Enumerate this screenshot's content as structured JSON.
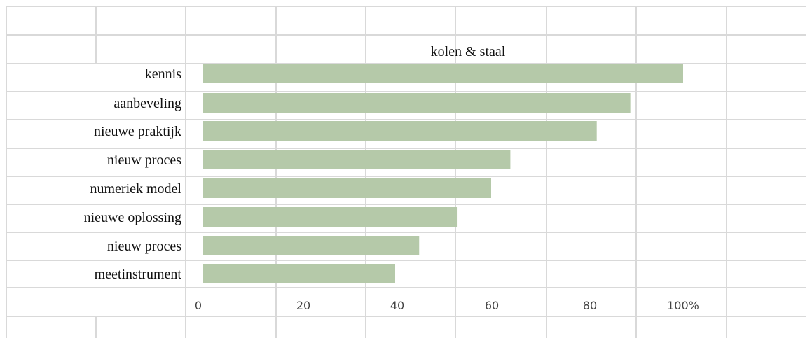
{
  "chart_data": {
    "type": "bar",
    "orientation": "horizontal",
    "title": "kolen & staal",
    "categories": [
      "kennis",
      "aanbeveling",
      "nieuwe praktijk",
      "nieuw proces",
      "numeriek model",
      "nieuwe oplossing",
      "nieuw proces",
      "meetinstrument"
    ],
    "values": [
      100,
      89,
      82,
      64,
      60,
      53,
      45,
      40
    ],
    "x_ticks": [
      "0",
      "20",
      "40",
      "60",
      "80",
      "100%"
    ],
    "xlim": [
      0,
      100
    ],
    "xlabel": "",
    "ylabel": "",
    "bar_color": "#b5c9a9",
    "gridline_color": "#d9d9d9"
  }
}
